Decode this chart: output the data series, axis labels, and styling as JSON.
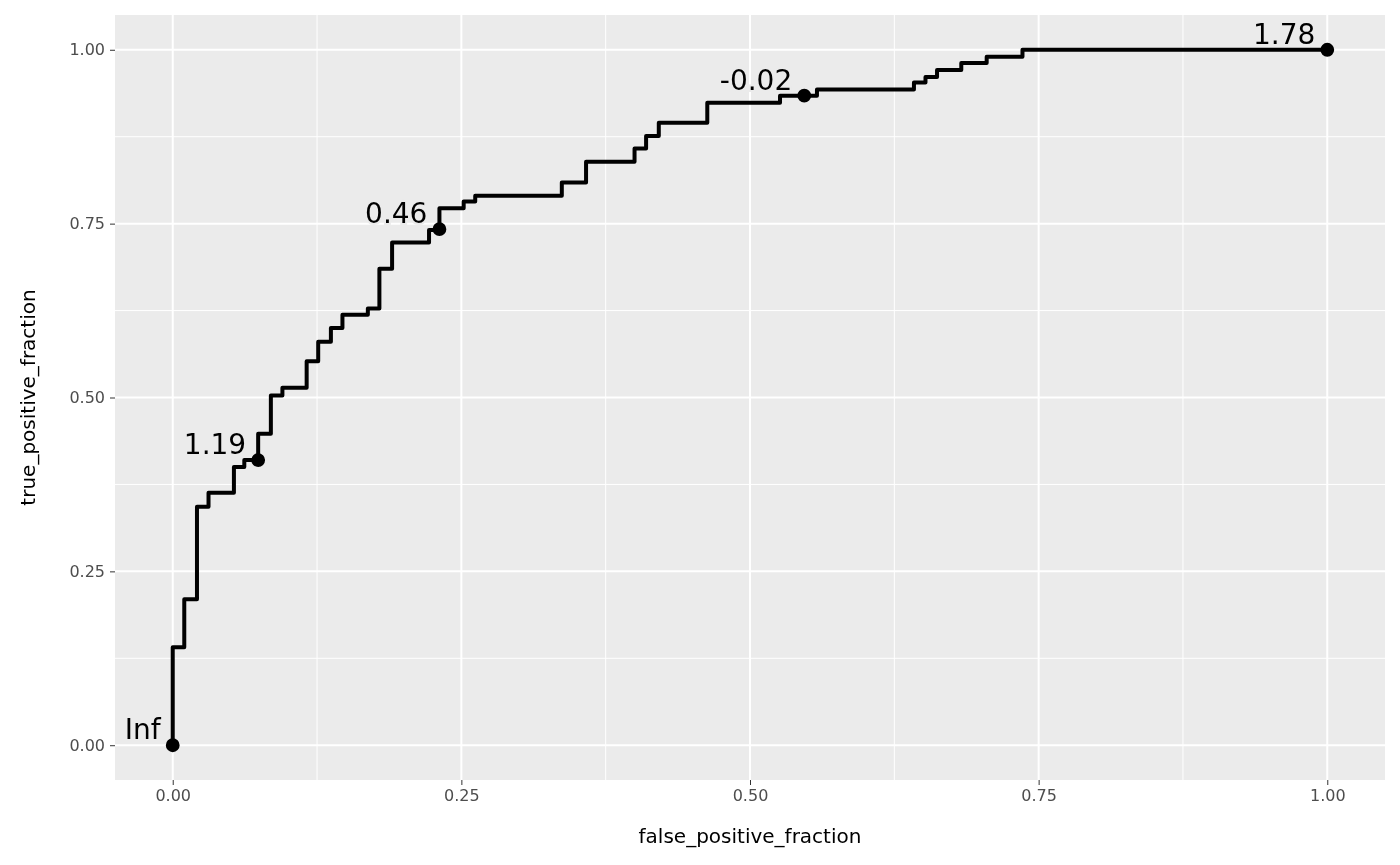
{
  "chart_data": {
    "type": "step",
    "xlabel": "false_positive_fraction",
    "ylabel": "true_positive_fraction",
    "xlim": [
      -0.05,
      1.05
    ],
    "ylim": [
      -0.05,
      1.05
    ],
    "xticks": [
      {
        "value": 0,
        "label": "0.00"
      },
      {
        "value": 0.25,
        "label": "0.25"
      },
      {
        "value": 0.5,
        "label": "0.50"
      },
      {
        "value": 0.75,
        "label": "0.75"
      },
      {
        "value": 1,
        "label": "1.00"
      }
    ],
    "yticks": [
      {
        "value": 0,
        "label": "0.00"
      },
      {
        "value": 0.25,
        "label": "0.25"
      },
      {
        "value": 0.5,
        "label": "0.50"
      },
      {
        "value": 0.75,
        "label": "0.75"
      },
      {
        "value": 1,
        "label": "1.00"
      }
    ],
    "grid": true,
    "annotations": [
      {
        "text": "Inf",
        "x": 0,
        "y": 0
      },
      {
        "text": "1.19",
        "x": 0.074,
        "y": 0.41
      },
      {
        "text": "0.46",
        "x": 0.231,
        "y": 0.742
      },
      {
        "text": "-0.02",
        "x": 0.547,
        "y": 0.934
      },
      {
        "text": "1.78",
        "x": 1,
        "y": 1
      }
    ],
    "series": [
      {
        "color": "#000000",
        "x": [
          0,
          0,
          0.01,
          0.021,
          0.031,
          0.053,
          0.062,
          0.074,
          0.085,
          0.095,
          0.116,
          0.126,
          0.137,
          0.147,
          0.169,
          0.179,
          0.19,
          0.222,
          0.231,
          0.252,
          0.262,
          0.337,
          0.358,
          0.4,
          0.41,
          0.421,
          0.463,
          0.526,
          0.558,
          0.642,
          0.652,
          0.662,
          0.683,
          0.705,
          0.736,
          1
        ],
        "values": [
          0,
          0.141,
          0.21,
          0.343,
          0.363,
          0.4,
          0.41,
          0.448,
          0.503,
          0.514,
          0.552,
          0.58,
          0.6,
          0.619,
          0.628,
          0.685,
          0.723,
          0.741,
          0.772,
          0.782,
          0.79,
          0.809,
          0.839,
          0.858,
          0.876,
          0.895,
          0.924,
          0.934,
          0.943,
          0.953,
          0.961,
          0.971,
          0.981,
          0.99,
          1,
          1
        ]
      },
      {
        "type": "scatter",
        "color": "#000000",
        "marker": "circle",
        "x": [
          0,
          0.074,
          0.231,
          0.547,
          1
        ],
        "values": [
          0,
          0.41,
          0.742,
          0.934,
          1
        ]
      }
    ]
  }
}
